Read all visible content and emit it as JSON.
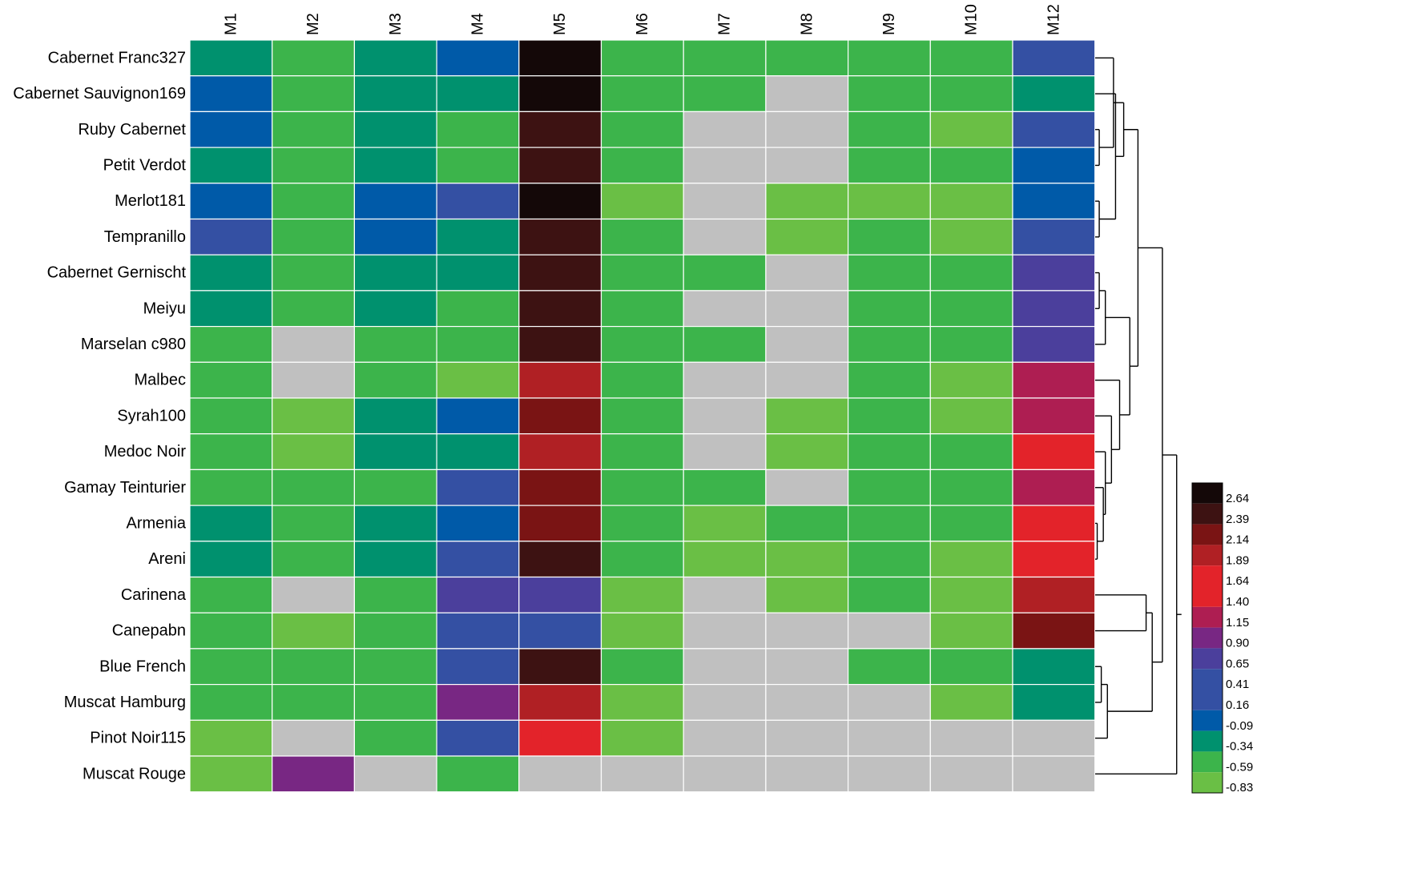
{
  "chart_data": {
    "type": "heatmap",
    "title": "",
    "xlabel": "",
    "ylabel": "",
    "columns": [
      "M1",
      "M2",
      "M3",
      "M4",
      "M5",
      "M6",
      "M7",
      "M8",
      "M9",
      "M10",
      "M12"
    ],
    "rows": [
      "Cabernet Franc327",
      "Cabernet Sauvignon169",
      "Ruby Cabernet",
      "Petit Verdot",
      "Merlot181",
      "Tempranillo",
      "Cabernet Gernischt",
      "Meiyu",
      "Marselan c980",
      "Malbec",
      "Syrah100",
      "Medoc Noir",
      "Gamay Teinturier",
      "Armenia",
      "Areni",
      "Carinena",
      "Canepabn",
      "Blue French",
      "Muscat Hamburg",
      "Pinot Noir115",
      "Muscat Rouge"
    ],
    "color_scale": {
      "ticks": [
        "2.64",
        "2.39",
        "2.14",
        "1.89",
        "1.64",
        "1.40",
        "1.15",
        "0.90",
        "0.65",
        "0.41",
        "0.16",
        "-0.09",
        "-0.34",
        "-0.59",
        "-0.83"
      ],
      "bands": [
        {
          "value": 2.64,
          "color": "#140808"
        },
        {
          "value": 2.39,
          "color": "#3d1212"
        },
        {
          "value": 2.14,
          "color": "#7a1414"
        },
        {
          "value": 1.89,
          "color": "#b02024"
        },
        {
          "value": 1.64,
          "color": "#e3232a"
        },
        {
          "value": 1.4,
          "color": "#e3232a"
        },
        {
          "value": 1.15,
          "color": "#ae1e52"
        },
        {
          "value": 0.9,
          "color": "#782783"
        },
        {
          "value": 0.65,
          "color": "#4b3f9c"
        },
        {
          "value": 0.41,
          "color": "#3450a3"
        },
        {
          "value": 0.16,
          "color": "#3450a3"
        },
        {
          "value": -0.09,
          "color": "#005aa8"
        },
        {
          "value": -0.34,
          "color": "#00916e"
        },
        {
          "value": -0.59,
          "color": "#3cb44b"
        },
        {
          "value": -0.83,
          "color": "#6abf45"
        }
      ],
      "missing_color": "#c0c0c0"
    },
    "values": [
      [
        -0.34,
        -0.59,
        -0.34,
        -0.09,
        2.64,
        -0.59,
        -0.59,
        -0.59,
        -0.59,
        -0.59,
        0.41
      ],
      [
        -0.09,
        -0.59,
        -0.34,
        -0.34,
        2.64,
        -0.59,
        -0.59,
        null,
        -0.59,
        -0.59,
        -0.34
      ],
      [
        -0.09,
        -0.59,
        -0.34,
        -0.59,
        2.39,
        -0.59,
        null,
        null,
        -0.59,
        -0.83,
        0.41
      ],
      [
        -0.34,
        -0.59,
        -0.34,
        -0.59,
        2.39,
        -0.59,
        null,
        null,
        -0.59,
        -0.59,
        -0.09
      ],
      [
        -0.09,
        -0.59,
        -0.09,
        0.41,
        2.64,
        -0.83,
        null,
        -0.83,
        -0.83,
        -0.83,
        -0.09
      ],
      [
        0.41,
        -0.59,
        -0.09,
        -0.34,
        2.39,
        -0.59,
        null,
        -0.83,
        -0.59,
        -0.83,
        0.41
      ],
      [
        -0.34,
        -0.59,
        -0.34,
        -0.34,
        2.39,
        -0.59,
        -0.59,
        null,
        -0.59,
        -0.59,
        0.65
      ],
      [
        -0.34,
        -0.59,
        -0.34,
        -0.59,
        2.39,
        -0.59,
        null,
        null,
        -0.59,
        -0.59,
        0.65
      ],
      [
        -0.59,
        null,
        -0.59,
        -0.59,
        2.39,
        -0.59,
        -0.59,
        null,
        -0.59,
        -0.59,
        0.65
      ],
      [
        -0.59,
        null,
        -0.59,
        -0.83,
        1.89,
        -0.59,
        null,
        null,
        -0.59,
        -0.83,
        1.15
      ],
      [
        -0.59,
        -0.83,
        -0.34,
        -0.09,
        2.14,
        -0.59,
        null,
        -0.83,
        -0.59,
        -0.83,
        1.15
      ],
      [
        -0.59,
        -0.83,
        -0.34,
        -0.34,
        1.89,
        -0.59,
        null,
        -0.83,
        -0.59,
        -0.59,
        1.64
      ],
      [
        -0.59,
        -0.59,
        -0.59,
        0.41,
        2.14,
        -0.59,
        -0.59,
        null,
        -0.59,
        -0.59,
        1.15
      ],
      [
        -0.34,
        -0.59,
        -0.34,
        -0.09,
        2.14,
        -0.59,
        -0.83,
        -0.59,
        -0.59,
        -0.59,
        1.64
      ],
      [
        -0.34,
        -0.59,
        -0.34,
        0.41,
        2.39,
        -0.59,
        -0.83,
        -0.83,
        -0.59,
        -0.83,
        1.64
      ],
      [
        -0.59,
        null,
        -0.59,
        0.65,
        0.65,
        -0.83,
        null,
        -0.83,
        -0.59,
        -0.83,
        1.89
      ],
      [
        -0.59,
        -0.83,
        -0.59,
        0.41,
        0.41,
        -0.83,
        null,
        null,
        null,
        -0.83,
        2.14
      ],
      [
        -0.59,
        -0.59,
        -0.59,
        0.41,
        2.39,
        -0.59,
        null,
        null,
        -0.59,
        -0.59,
        -0.34
      ],
      [
        -0.59,
        -0.59,
        -0.59,
        0.9,
        1.89,
        -0.83,
        null,
        null,
        null,
        -0.83,
        -0.34
      ],
      [
        -0.83,
        null,
        -0.59,
        0.41,
        1.64,
        -0.83,
        null,
        null,
        null,
        null,
        null
      ],
      [
        -0.83,
        0.9,
        null,
        -0.59,
        null,
        null,
        null,
        null,
        null,
        null,
        null
      ]
    ],
    "dendrogram": {
      "type": "row-cluster",
      "merges": [
        [
          2,
          3
        ],
        [
          21,
          0
        ],
        [
          4,
          5
        ],
        [
          23,
          1
        ],
        [
          24,
          22
        ],
        [
          6,
          7
        ],
        [
          26,
          8
        ],
        [
          13,
          14
        ],
        [
          28,
          12
        ],
        [
          29,
          11
        ],
        [
          30,
          10
        ],
        [
          31,
          9
        ],
        [
          27,
          32
        ],
        [
          25,
          33
        ],
        [
          17,
          18
        ],
        [
          35,
          19
        ],
        [
          15,
          16
        ],
        [
          37,
          36
        ],
        [
          34,
          38
        ],
        [
          39,
          20
        ]
      ],
      "heights": [
        0.2,
        0.9,
        0.2,
        1.0,
        1.4,
        0.2,
        0.5,
        0.1,
        0.4,
        0.5,
        0.8,
        1.2,
        1.7,
        2.1,
        0.3,
        0.6,
        2.5,
        2.8,
        3.3,
        4.0
      ],
      "max_height": 4.6
    }
  }
}
